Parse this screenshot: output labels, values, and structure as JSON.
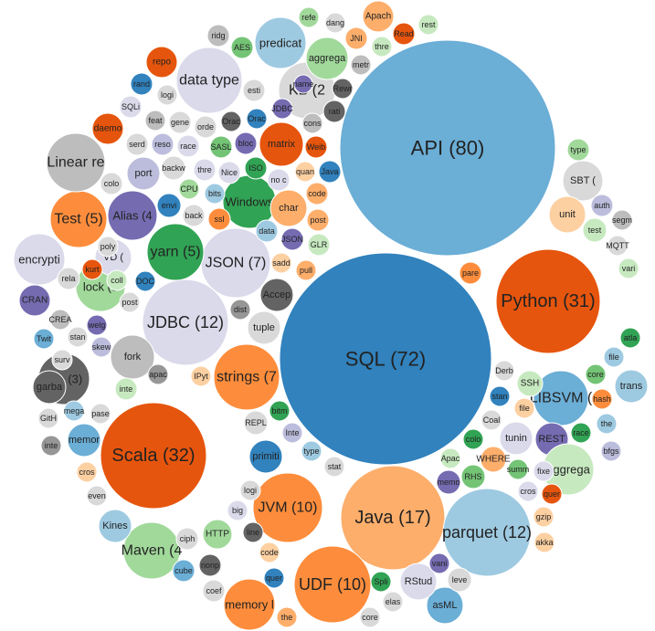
{
  "colors": {
    "blue": "#3182bd",
    "lightblue": "#6baed6",
    "paleblue": "#9ecae1",
    "orange": "#e6550d",
    "lightorange": "#fd8d3c",
    "paleorange": "#fdae6b",
    "peach": "#fdd0a2",
    "green": "#31a354",
    "lightgreen": "#74c476",
    "palegreen": "#a1d99b",
    "mint": "#c7e9c0",
    "purple": "#756bb1",
    "lightpurple": "#9e9ac8",
    "lavender": "#bcbddc",
    "palelavender": "#dadaeb",
    "darkgray": "#636363",
    "gray": "#969696",
    "lightgray": "#bdbdbd",
    "palegray": "#d9d9d9"
  },
  "chart_data": {
    "type": "bubble",
    "title": "",
    "items": [
      {
        "label": "API (80)",
        "value": 80,
        "color": "lightblue"
      },
      {
        "label": "SQL (72)",
        "value": 72,
        "color": "blue"
      },
      {
        "label": "Scala (32)",
        "value": 32,
        "color": "orange"
      },
      {
        "label": "Python (31)",
        "value": 31,
        "color": "orange"
      },
      {
        "label": "Java (17)",
        "value": 17,
        "color": "paleorange"
      },
      {
        "label": "parquet (12)",
        "value": 12,
        "color": "paleblue"
      },
      {
        "label": "JDBC (12)",
        "value": 12,
        "color": "palelavender"
      },
      {
        "label": "UDF (10)",
        "value": 10,
        "color": "lightorange"
      },
      {
        "label": "JVM (10)",
        "value": 10,
        "color": "lightorange"
      },
      {
        "label": "JSON (7)",
        "value": 7,
        "color": "palelavender"
      },
      {
        "label": "strings (7",
        "value": 7,
        "color": "lightorange"
      },
      {
        "label": "yarn (5)",
        "value": 5,
        "color": "green"
      },
      {
        "label": "Test (5)",
        "value": 5,
        "color": "lightorange"
      },
      {
        "label": "Alias (4",
        "value": 4,
        "color": "purple"
      },
      {
        "label": "Maven (4",
        "value": 4,
        "color": "palegreen"
      },
      {
        "label": "KB (2",
        "value": 2,
        "color": "palegray"
      },
      {
        "label": "lock (3",
        "value": 3,
        "color": "palegreen"
      },
      {
        "label": "Job (3)",
        "value": 3,
        "color": "darkgray"
      },
      {
        "label": "VD (",
        "value": 3,
        "color": "palelavender"
      },
      {
        "label": "LIBSVM (",
        "value": 3,
        "color": "lightblue"
      },
      {
        "label": "SBT (",
        "value": 2,
        "color": "palegray"
      },
      {
        "label": "REST",
        "value": 2,
        "color": "purple"
      },
      {
        "label": "data type",
        "value": 3,
        "color": "palelavender"
      },
      {
        "label": "Linear re",
        "value": 3,
        "color": "lightgray"
      },
      {
        "label": "encrypti",
        "value": 3,
        "color": "palelavender"
      },
      {
        "label": "predicat",
        "value": 2,
        "color": "paleblue"
      },
      {
        "label": "aggrega",
        "value": 2,
        "color": "palegreen"
      },
      {
        "label": "aggrega",
        "value": 2,
        "color": "mint"
      },
      {
        "label": "asML",
        "value": 1.5,
        "color": "lightblue"
      },
      {
        "label": "memory l",
        "value": 1.5,
        "color": "lightorange"
      },
      {
        "label": "matrix",
        "value": 1.5,
        "color": "orange"
      },
      {
        "label": "Windows",
        "value": 1.5,
        "color": "green"
      },
      {
        "label": "fork",
        "value": 1.5,
        "color": "lightgray"
      },
      {
        "label": "char",
        "value": 1.5,
        "color": "paleorange"
      },
      {
        "label": "port",
        "value": 1.2,
        "color": "lavender"
      },
      {
        "label": "unit",
        "value": 1.2,
        "color": "peach"
      },
      {
        "label": "trans",
        "value": 1.2,
        "color": "paleblue"
      },
      {
        "label": "Accep",
        "value": 1.1,
        "color": "darkgray"
      },
      {
        "label": "garba",
        "value": 1.1,
        "color": "darkgray"
      },
      {
        "label": "memor",
        "value": 1.1,
        "color": "lightblue"
      },
      {
        "label": "tuple",
        "value": 1.1,
        "color": "palegray"
      },
      {
        "label": "primiti",
        "value": 1.1,
        "color": "blue"
      },
      {
        "label": "tunin",
        "value": 1.1,
        "color": "palelavender"
      },
      {
        "label": "Kines",
        "value": 1.1,
        "color": "paleblue"
      },
      {
        "label": "Apach",
        "value": 1,
        "color": "paleorange"
      },
      {
        "label": "CRAN",
        "value": 1,
        "color": "purple"
      },
      {
        "label": "repo",
        "value": 1,
        "color": "orange"
      },
      {
        "label": "daemo",
        "value": 1,
        "color": "orange"
      },
      {
        "label": "backw",
        "value": 1,
        "color": "palegray"
      },
      {
        "label": "HTTP",
        "value": 0.8,
        "color": "palegreen"
      },
      {
        "label": "RStud",
        "value": 0.8,
        "color": "palelavender"
      },
      {
        "label": "WHERE",
        "value": 0.8,
        "color": "paleorange"
      },
      {
        "label": "SSH",
        "value": 0.8,
        "color": "mint"
      },
      {
        "label": "REPL",
        "value": 0.8,
        "color": "palegray"
      },
      {
        "label": "AES",
        "value": 0.8,
        "color": "lightgreen"
      },
      {
        "label": "JNI",
        "value": 0.7,
        "color": "paleorange"
      },
      {
        "label": "Read",
        "value": 0.7,
        "color": "orange"
      },
      {
        "label": "post",
        "value": 0.7,
        "color": "paleorange"
      },
      {
        "label": "JSON",
        "value": 0.6,
        "color": "purple"
      },
      {
        "label": "Weib",
        "value": 0.6,
        "color": "orange"
      },
      {
        "label": "SQLi",
        "value": 0.6,
        "color": "palelavender"
      },
      {
        "label": "rand",
        "value": 0.6,
        "color": "blue"
      },
      {
        "label": "logi",
        "value": 0.6,
        "color": "palegray"
      },
      {
        "label": "ridg",
        "value": 0.6,
        "color": "lightgray"
      },
      {
        "label": "refe",
        "value": 0.6,
        "color": "palegreen"
      },
      {
        "label": "dang",
        "value": 0.5,
        "color": "palegray"
      },
      {
        "label": "rest",
        "value": 0.5,
        "color": "mint"
      },
      {
        "label": "thre",
        "value": 0.5,
        "color": "mint"
      },
      {
        "label": "metr",
        "value": 0.5,
        "color": "lightgray"
      },
      {
        "label": "name",
        "value": 0.5,
        "color": "purple"
      },
      {
        "label": "esti",
        "value": 0.5,
        "color": "palegray"
      },
      {
        "label": "Rewr",
        "value": 0.6,
        "color": "darkgray"
      },
      {
        "label": "JDBC",
        "value": 0.5,
        "color": "purple"
      },
      {
        "label": "cons",
        "value": 0.5,
        "color": "lightgray"
      },
      {
        "label": "rati",
        "value": 0.5,
        "color": "darkgray"
      },
      {
        "label": "thre",
        "value": 0.5,
        "color": "palelavender"
      },
      {
        "label": "Orac",
        "value": 0.6,
        "color": "blue"
      },
      {
        "label": "Orac",
        "value": 0.5,
        "color": "darkgray"
      },
      {
        "label": "orde",
        "value": 0.5,
        "color": "palegray"
      },
      {
        "label": "gene",
        "value": 0.5,
        "color": "palegray"
      },
      {
        "label": "feat",
        "value": 0.5,
        "color": "lightgray"
      },
      {
        "label": "serd",
        "value": 0.5,
        "color": "palegray"
      },
      {
        "label": "reso",
        "value": 0.5,
        "color": "lavender"
      },
      {
        "label": "race",
        "value": 0.5,
        "color": "palelavender"
      },
      {
        "label": "SASL",
        "value": 0.6,
        "color": "lightgreen"
      },
      {
        "label": "bloc",
        "value": 0.5,
        "color": "purple"
      },
      {
        "label": "ISO",
        "value": 0.6,
        "color": "green"
      },
      {
        "label": "quan",
        "value": 0.5,
        "color": "peach"
      },
      {
        "label": "Java",
        "value": 0.5,
        "color": "blue"
      },
      {
        "label": "no c",
        "value": 0.5,
        "color": "palelavender"
      },
      {
        "label": "code",
        "value": 0.5,
        "color": "paleorange"
      },
      {
        "label": "Nice",
        "value": 0.5,
        "color": "palelavender"
      },
      {
        "label": "colo",
        "value": 0.5,
        "color": "palegray"
      },
      {
        "label": "envi",
        "value": 0.5,
        "color": "blue"
      },
      {
        "label": "CPU",
        "value": 0.6,
        "color": "palegreen"
      },
      {
        "label": "bits",
        "value": 0.5,
        "color": "paleblue"
      },
      {
        "label": "back",
        "value": 0.5,
        "color": "palegray"
      },
      {
        "label": "ssl",
        "value": 0.6,
        "color": "lightorange"
      },
      {
        "label": "data",
        "value": 0.5,
        "color": "paleblue"
      },
      {
        "label": "GLR",
        "value": 0.5,
        "color": "mint"
      },
      {
        "label": "sadd",
        "value": 0.5,
        "color": "peach"
      },
      {
        "label": "pull",
        "value": 0.5,
        "color": "paleorange"
      },
      {
        "label": "poly",
        "value": 0.5,
        "color": "palegray"
      },
      {
        "label": "rela",
        "value": 0.5,
        "color": "palegray"
      },
      {
        "label": "kurt",
        "value": 0.5,
        "color": "orange"
      },
      {
        "label": "coll",
        "value": 0.5,
        "color": "mint"
      },
      {
        "label": "DOC",
        "value": 0.5,
        "color": "blue"
      },
      {
        "label": "post",
        "value": 0.5,
        "color": "palegray"
      },
      {
        "label": "CREA",
        "value": 0.5,
        "color": "lightgray"
      },
      {
        "label": "stan",
        "value": 0.5,
        "color": "palegray"
      },
      {
        "label": "Twit",
        "value": 0.5,
        "color": "lightblue"
      },
      {
        "label": "skew",
        "value": 0.5,
        "color": "lavender"
      },
      {
        "label": "welg",
        "value": 0.5,
        "color": "purple"
      },
      {
        "label": "surv",
        "value": 0.5,
        "color": "palegray"
      },
      {
        "label": "dist",
        "value": 0.5,
        "color": "gray"
      },
      {
        "label": "apac",
        "value": 0.5,
        "color": "gray"
      },
      {
        "label": "IPyt",
        "value": 0.5,
        "color": "peach"
      },
      {
        "label": "inte",
        "value": 0.5,
        "color": "mint"
      },
      {
        "label": "mega",
        "value": 0.5,
        "color": "paleblue"
      },
      {
        "label": "pase",
        "value": 0.5,
        "color": "palegray"
      },
      {
        "label": "GitH",
        "value": 0.5,
        "color": "palegray"
      },
      {
        "label": "inte",
        "value": 0.5,
        "color": "gray"
      },
      {
        "label": "cros",
        "value": 0.5,
        "color": "peach"
      },
      {
        "label": "even",
        "value": 0.5,
        "color": "palegray"
      },
      {
        "label": "bitm",
        "value": 0.5,
        "color": "green"
      },
      {
        "label": "Inte",
        "value": 0.5,
        "color": "lavender"
      },
      {
        "label": "type",
        "value": 0.5,
        "color": "paleblue"
      },
      {
        "label": "stat",
        "value": 0.5,
        "color": "palegray"
      },
      {
        "label": "logi",
        "value": 0.5,
        "color": "palegray"
      },
      {
        "label": "big",
        "value": 0.5,
        "color": "palelavender"
      },
      {
        "label": "line",
        "value": 0.5,
        "color": "darkgray"
      },
      {
        "label": "code",
        "value": 0.5,
        "color": "peach"
      },
      {
        "label": "ciph",
        "value": 0.5,
        "color": "palegray"
      },
      {
        "label": "nonp",
        "value": 0.5,
        "color": "darkgray"
      },
      {
        "label": "cube",
        "value": 0.5,
        "color": "lightblue"
      },
      {
        "label": "coef",
        "value": 0.5,
        "color": "palegray"
      },
      {
        "label": "quer",
        "value": 0.5,
        "color": "blue"
      },
      {
        "label": "the",
        "value": 0.5,
        "color": "paleorange"
      },
      {
        "label": "core",
        "value": 0.5,
        "color": "palegray"
      },
      {
        "label": "elas",
        "value": 0.5,
        "color": "palegray"
      },
      {
        "label": "Spli",
        "value": 0.5,
        "color": "green"
      },
      {
        "label": "vani",
        "value": 0.5,
        "color": "purple"
      },
      {
        "label": "leve",
        "value": 0.5,
        "color": "palegray"
      },
      {
        "label": "memo",
        "value": 0.5,
        "color": "purple"
      },
      {
        "label": "RHS",
        "value": 0.5,
        "color": "lightgreen"
      },
      {
        "label": "Apac",
        "value": 0.5,
        "color": "mint"
      },
      {
        "label": "colo",
        "value": 0.5,
        "color": "green"
      },
      {
        "label": "Coal",
        "value": 0.5,
        "color": "palegray"
      },
      {
        "label": "stan",
        "value": 0.5,
        "color": "blue"
      },
      {
        "label": "Derb",
        "value": 0.5,
        "color": "palegray"
      },
      {
        "label": "file",
        "value": 0.5,
        "color": "peach"
      },
      {
        "label": "summ",
        "value": 0.5,
        "color": "lightgreen"
      },
      {
        "label": "fixe",
        "value": 0.5,
        "color": "palelavender"
      },
      {
        "label": "race",
        "value": 0.5,
        "color": "green"
      },
      {
        "label": "core",
        "value": 0.5,
        "color": "lightgreen"
      },
      {
        "label": "hash",
        "value": 0.5,
        "color": "lightorange"
      },
      {
        "label": "file",
        "value": 0.5,
        "color": "paleblue"
      },
      {
        "label": "atla",
        "value": 0.5,
        "color": "green"
      },
      {
        "label": "the",
        "value": 0.5,
        "color": "paleblue"
      },
      {
        "label": "bfgs",
        "value": 0.5,
        "color": "lavender"
      },
      {
        "label": "cros",
        "value": 0.5,
        "color": "palelavender"
      },
      {
        "label": "quer",
        "value": 0.5,
        "color": "orange"
      },
      {
        "label": "gzip",
        "value": 0.5,
        "color": "peach"
      },
      {
        "label": "akka",
        "value": 0.5,
        "color": "peach"
      },
      {
        "label": "type",
        "value": 0.5,
        "color": "palegreen"
      },
      {
        "label": "auth",
        "value": 0.5,
        "color": "lavender"
      },
      {
        "label": "segm",
        "value": 0.5,
        "color": "lightgray"
      },
      {
        "label": "test",
        "value": 0.5,
        "color": "mint"
      },
      {
        "label": "MQTT",
        "value": 0.5,
        "color": "palegray"
      },
      {
        "label": "vari",
        "value": 0.5,
        "color": "mint"
      },
      {
        "label": "pare",
        "value": 0.5,
        "color": "lightorange"
      },
      {
        "label": "sema",
        "value": 0.5,
        "color": "palelavender"
      }
    ]
  }
}
